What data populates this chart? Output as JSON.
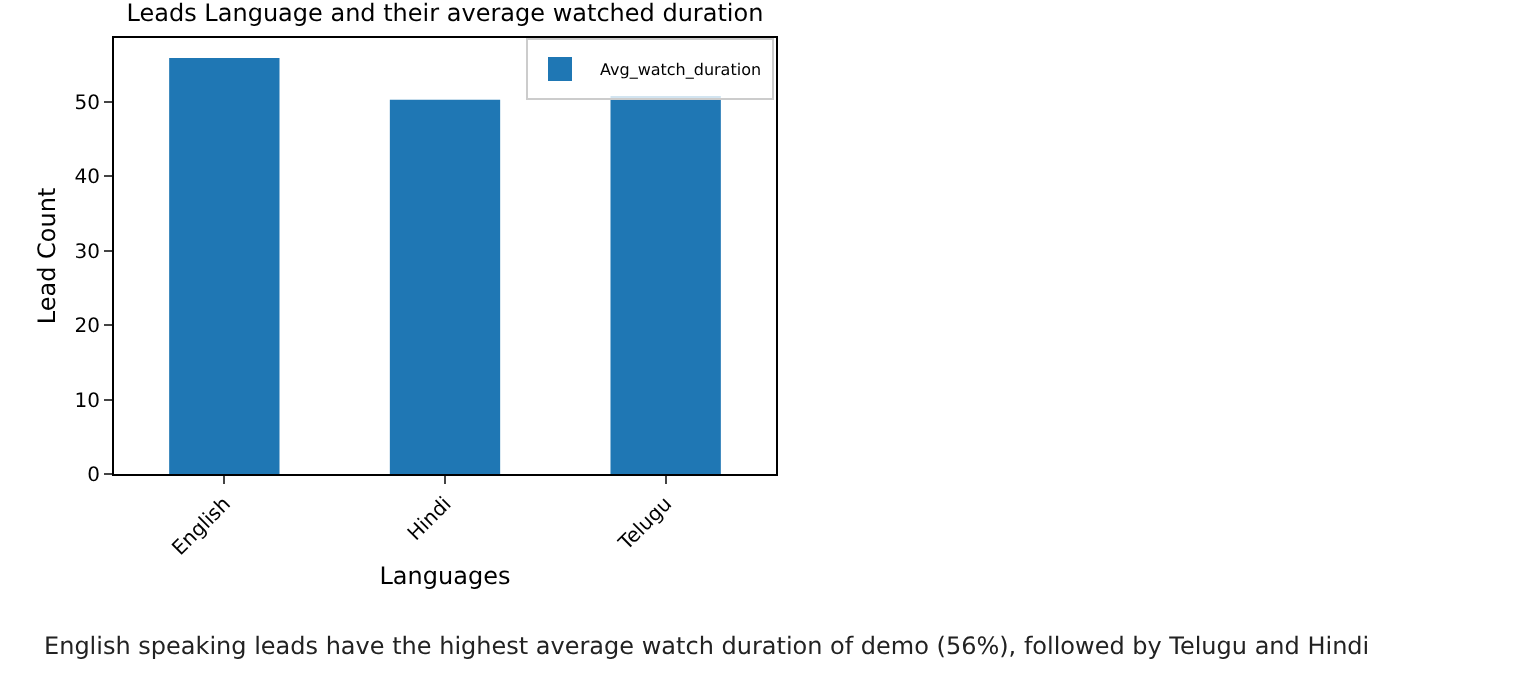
{
  "chart_data": {
    "type": "bar",
    "title": "Leads Language and their average watched duration",
    "xlabel": "Languages",
    "ylabel": "Lead Count",
    "categories": [
      "English",
      "Hindi",
      "Telugu"
    ],
    "series": [
      {
        "name": "Avg_watch_duration",
        "color": "#1f77b4",
        "values": [
          55.9,
          50.3,
          50.8
        ]
      }
    ],
    "ylim": [
      0,
      58.6
    ],
    "yticks": [
      0,
      10,
      20,
      30,
      40,
      50
    ],
    "legend": "top right",
    "annotations": [
      "English speaking leads have the highest average watch duration of demo (56%), followed by Telugu and Hindi"
    ]
  }
}
